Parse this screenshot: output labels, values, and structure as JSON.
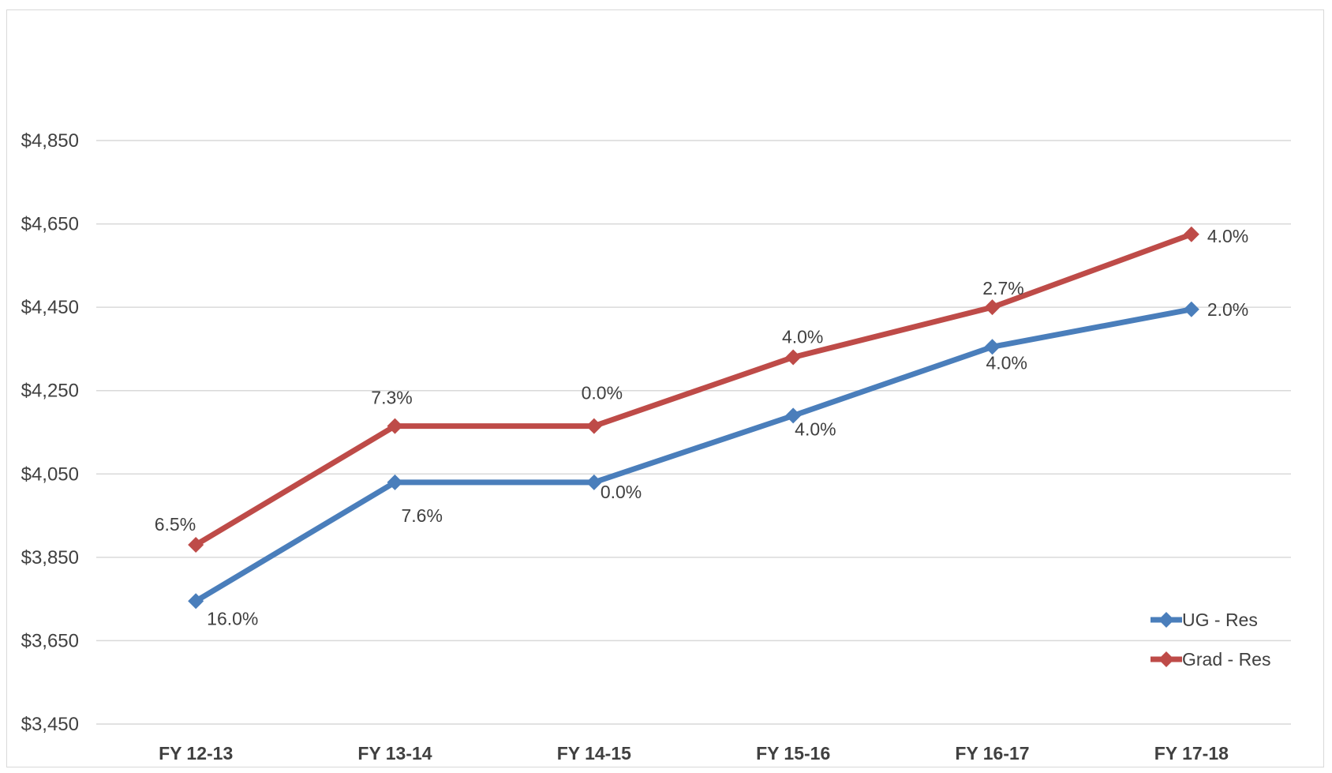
{
  "chart_data": {
    "type": "line",
    "title": "",
    "xlabel": "",
    "ylabel": "",
    "categories": [
      "FY 12-13",
      "FY 13-14",
      "FY 14-15",
      "FY 15-16",
      "FY 16-17",
      "FY 17-18"
    ],
    "y_ticks": [
      "$3,450",
      "$3,650",
      "$3,850",
      "$4,050",
      "$4,250",
      "$4,450",
      "$4,650",
      "$4,850"
    ],
    "ylim": [
      3450,
      4850
    ],
    "grid": true,
    "legend_position": "bottom-right",
    "series": [
      {
        "name": "UG - Res",
        "color": "#4a7ebb",
        "values": [
          3745,
          4030,
          4030,
          4190,
          4355,
          4445
        ],
        "labels": [
          "16.0%",
          "7.6%",
          "0.0%",
          "4.0%",
          "4.0%",
          "2.0%"
        ]
      },
      {
        "name": "Grad - Res",
        "color": "#be4b48",
        "values": [
          3880,
          4165,
          4165,
          4330,
          4450,
          4625
        ],
        "labels": [
          "6.5%",
          "7.3%",
          "0.0%",
          "4.0%",
          "2.7%",
          "4.0%"
        ]
      }
    ]
  }
}
